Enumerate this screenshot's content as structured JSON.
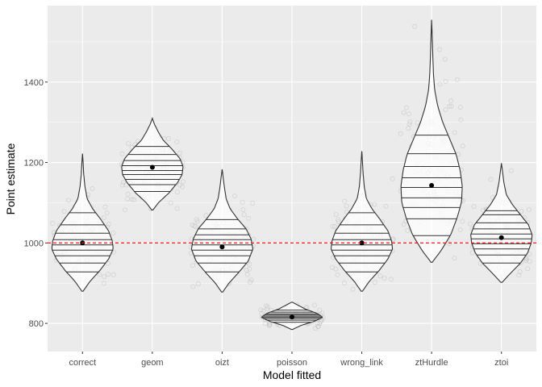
{
  "chart_data": {
    "type": "violin",
    "title": "",
    "xlabel": "Model fitted",
    "ylabel": "Point estimate",
    "ylim": [
      730,
      1590
    ],
    "y_ticks": [
      800,
      1000,
      1200,
      1400
    ],
    "grid": true,
    "legend": "none",
    "reference_line": {
      "y": 1000,
      "style": "dashed",
      "color": "#ff0000"
    },
    "categories": [
      "correct",
      "geom",
      "oizt",
      "poisson",
      "wrong_link",
      "ztHurdle",
      "ztoi"
    ],
    "series": [
      {
        "category": "correct",
        "mean": 1000,
        "min": 880,
        "max": 1222,
        "quantile_lines": [
          928,
          950,
          968,
          982,
          995,
          1008,
          1024,
          1045,
          1075
        ],
        "profile": [
          [
            880,
            0.02
          ],
          [
            905,
            0.25
          ],
          [
            930,
            0.55
          ],
          [
            960,
            0.85
          ],
          [
            985,
            1.0
          ],
          [
            1005,
            0.97
          ],
          [
            1030,
            0.85
          ],
          [
            1060,
            0.58
          ],
          [
            1085,
            0.33
          ],
          [
            1110,
            0.15
          ],
          [
            1140,
            0.08
          ],
          [
            1170,
            0.04
          ],
          [
            1200,
            0.02
          ],
          [
            1222,
            0.0
          ]
        ]
      },
      {
        "category": "geom",
        "mean": 1188,
        "min": 1082,
        "max": 1310,
        "quantile_lines": [
          1128,
          1145,
          1158,
          1170,
          1180,
          1192,
          1205,
          1220,
          1240
        ],
        "profile": [
          [
            1082,
            0.02
          ],
          [
            1100,
            0.2
          ],
          [
            1125,
            0.55
          ],
          [
            1150,
            0.82
          ],
          [
            1170,
            0.97
          ],
          [
            1190,
            1.0
          ],
          [
            1210,
            0.9
          ],
          [
            1235,
            0.62
          ],
          [
            1255,
            0.36
          ],
          [
            1275,
            0.2
          ],
          [
            1295,
            0.07
          ],
          [
            1310,
            0.0
          ]
        ]
      },
      {
        "category": "oizt",
        "mean": 990,
        "min": 878,
        "max": 1183,
        "quantile_lines": [
          928,
          950,
          968,
          982,
          995,
          1008,
          1020,
          1035,
          1058
        ],
        "profile": [
          [
            878,
            0.02
          ],
          [
            900,
            0.22
          ],
          [
            925,
            0.52
          ],
          [
            955,
            0.85
          ],
          [
            985,
            1.0
          ],
          [
            1010,
            0.94
          ],
          [
            1035,
            0.78
          ],
          [
            1060,
            0.5
          ],
          [
            1085,
            0.26
          ],
          [
            1110,
            0.13
          ],
          [
            1140,
            0.07
          ],
          [
            1165,
            0.03
          ],
          [
            1183,
            0.0
          ]
        ]
      },
      {
        "category": "poisson",
        "mean": 816,
        "min": 785,
        "max": 853,
        "quantile_lines": [
          803,
          808,
          812,
          815,
          818,
          821,
          824,
          828,
          833
        ],
        "profile": [
          [
            785,
            0.02
          ],
          [
            795,
            0.3
          ],
          [
            805,
            0.72
          ],
          [
            815,
            1.0
          ],
          [
            825,
            0.82
          ],
          [
            835,
            0.45
          ],
          [
            845,
            0.2
          ],
          [
            853,
            0.0
          ]
        ]
      },
      {
        "category": "wrong_link",
        "mean": 1000,
        "min": 880,
        "max": 1228,
        "quantile_lines": [
          928,
          950,
          968,
          982,
          995,
          1008,
          1024,
          1045,
          1075
        ],
        "profile": [
          [
            880,
            0.02
          ],
          [
            905,
            0.25
          ],
          [
            930,
            0.55
          ],
          [
            960,
            0.85
          ],
          [
            985,
            1.0
          ],
          [
            1005,
            0.97
          ],
          [
            1030,
            0.85
          ],
          [
            1060,
            0.58
          ],
          [
            1085,
            0.33
          ],
          [
            1110,
            0.15
          ],
          [
            1140,
            0.08
          ],
          [
            1175,
            0.04
          ],
          [
            1205,
            0.02
          ],
          [
            1228,
            0.0
          ]
        ]
      },
      {
        "category": "ztHurdle",
        "mean": 1143,
        "min": 952,
        "max": 1555,
        "quantile_lines": [
          1018,
          1060,
          1088,
          1112,
          1138,
          1162,
          1190,
          1222,
          1268
        ],
        "profile": [
          [
            952,
            0.02
          ],
          [
            980,
            0.3
          ],
          [
            1020,
            0.62
          ],
          [
            1060,
            0.82
          ],
          [
            1100,
            0.97
          ],
          [
            1140,
            1.0
          ],
          [
            1180,
            0.93
          ],
          [
            1220,
            0.8
          ],
          [
            1260,
            0.58
          ],
          [
            1300,
            0.36
          ],
          [
            1340,
            0.2
          ],
          [
            1380,
            0.1
          ],
          [
            1420,
            0.06
          ],
          [
            1460,
            0.04
          ],
          [
            1500,
            0.025
          ],
          [
            1555,
            0.0
          ]
        ]
      },
      {
        "category": "ztoi",
        "mean": 1013,
        "min": 902,
        "max": 1198,
        "quantile_lines": [
          950,
          970,
          985,
          998,
          1010,
          1022,
          1035,
          1050,
          1070,
          1080
        ],
        "profile": [
          [
            902,
            0.02
          ],
          [
            925,
            0.3
          ],
          [
            950,
            0.62
          ],
          [
            975,
            0.85
          ],
          [
            1000,
            0.97
          ],
          [
            1020,
            1.0
          ],
          [
            1045,
            0.88
          ],
          [
            1070,
            0.62
          ],
          [
            1095,
            0.36
          ],
          [
            1120,
            0.16
          ],
          [
            1150,
            0.08
          ],
          [
            1175,
            0.04
          ],
          [
            1198,
            0.0
          ]
        ]
      }
    ]
  }
}
